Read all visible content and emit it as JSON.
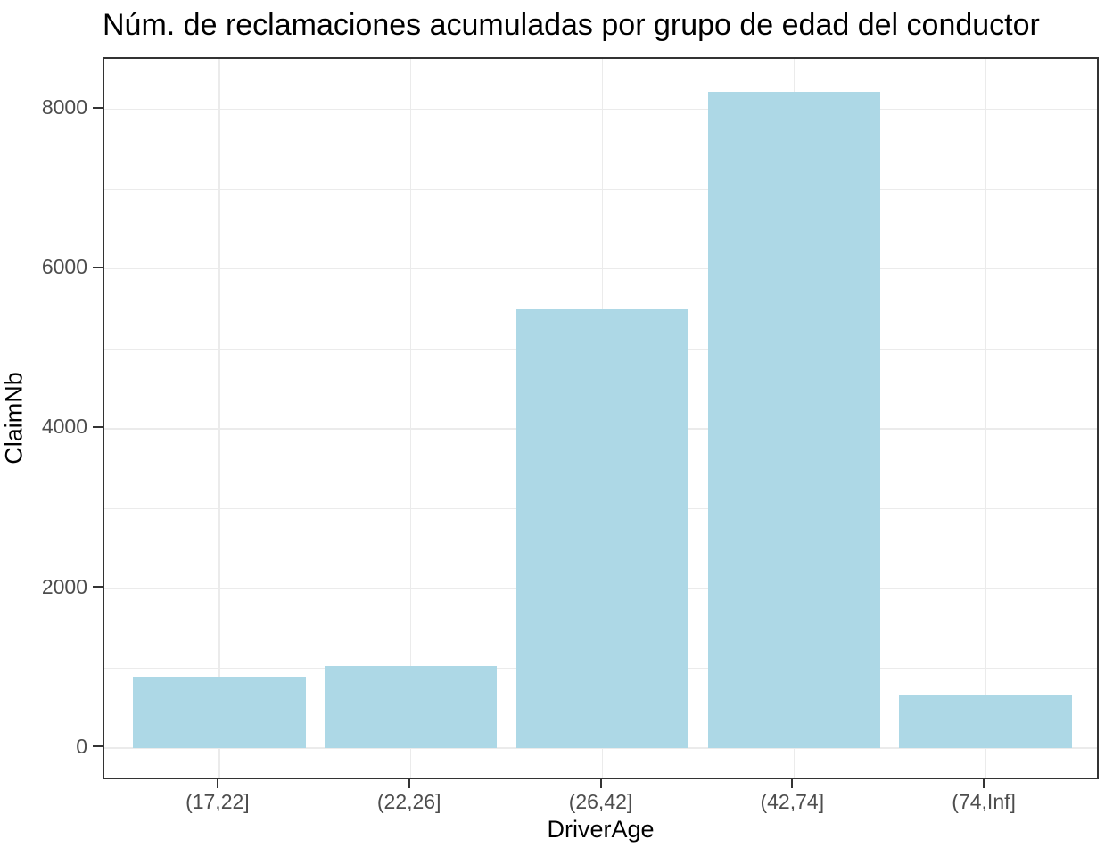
{
  "chart_data": {
    "type": "bar",
    "title": "Núm. de reclamaciones acumuladas por grupo de edad del conductor",
    "xlabel": "DriverAge",
    "ylabel": "ClaimNb",
    "categories": [
      "(17,22]",
      "(22,26]",
      "(26,42]",
      "(42,74]",
      "(74,Inf]"
    ],
    "values": [
      890,
      1030,
      5490,
      8220,
      670
    ],
    "yticks": [
      0,
      2000,
      4000,
      6000,
      8000
    ],
    "ytick_labels": [
      "0",
      "2000",
      "4000",
      "6000",
      "8000"
    ],
    "yminor": [
      1000,
      3000,
      5000,
      7000
    ],
    "ylim": [
      0,
      8631
    ],
    "grid": "major-and-minor-horizontal, major-vertical-at-categories",
    "legend": false,
    "colors": {
      "bar_fill": "#ADD8E6",
      "gridline": "#EBEBEB",
      "axis_text": "#4D4D4D",
      "title_text": "#000000",
      "panel_border": "#333333"
    }
  }
}
